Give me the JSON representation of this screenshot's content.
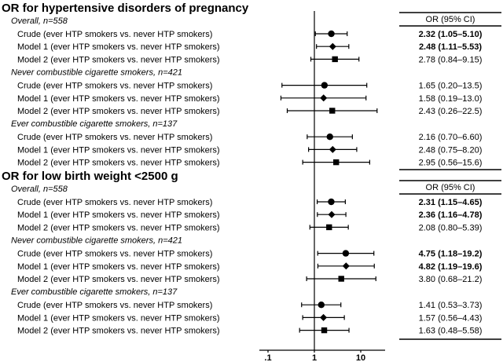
{
  "chart_data": {
    "type": "forest",
    "x_scale": "log",
    "x_ticks": [
      ".1",
      "1",
      "10"
    ],
    "x_tick_values": [
      0.1,
      1,
      10
    ],
    "reference_line": 1,
    "table_header": "OR (95% CI)",
    "marker_legend": {
      "Crude": "circle",
      "Model 1": "diamond",
      "Model 2": "square"
    },
    "panels": [
      {
        "title": "OR for hypertensive disorders of pregnancy",
        "groups": [
          {
            "label": "Overall, n=558",
            "rows": [
              {
                "label": "Crude (ever HTP smokers vs. never HTP smokers)",
                "or": 2.32,
                "lo": 1.05,
                "hi": 5.1,
                "text": "2.32 (1.05–5.10)",
                "bold": true
              },
              {
                "label": "Model 1 (ever HTP smokers vs. never HTP smokers)",
                "or": 2.48,
                "lo": 1.11,
                "hi": 5.53,
                "text": "2.48 (1.11–5.53)",
                "bold": true
              },
              {
                "label": "Model 2 (ever HTP smokers vs. never HTP smokers)",
                "or": 2.78,
                "lo": 0.84,
                "hi": 9.15,
                "text": "2.78 (0.84–9.15)",
                "bold": false
              }
            ]
          },
          {
            "label": "Never combustible cigarette smokers, n=421",
            "rows": [
              {
                "label": "Crude (ever HTP smokers vs. never HTP smokers)",
                "or": 1.65,
                "lo": 0.2,
                "hi": 13.5,
                "text": "1.65 (0.20–13.5)",
                "bold": false
              },
              {
                "label": "Model 1 (ever HTP smokers vs. never HTP smokers)",
                "or": 1.58,
                "lo": 0.19,
                "hi": 13.0,
                "text": "1.58 (0.19–13.0)",
                "bold": false
              },
              {
                "label": "Model 2 (ever HTP smokers vs. never HTP smokers)",
                "or": 2.43,
                "lo": 0.26,
                "hi": 22.5,
                "text": "2.43 (0.26–22.5)",
                "bold": false
              }
            ]
          },
          {
            "label": "Ever combustible cigarette smokers, n=137",
            "rows": [
              {
                "label": "Crude (ever HTP smokers vs. never HTP smokers)",
                "or": 2.16,
                "lo": 0.7,
                "hi": 6.6,
                "text": "2.16 (0.70–6.60)",
                "bold": false
              },
              {
                "label": "Model 1 (ever HTP smokers vs. never HTP smokers)",
                "or": 2.48,
                "lo": 0.75,
                "hi": 8.2,
                "text": "2.48 (0.75–8.20)",
                "bold": false
              },
              {
                "label": "Model 2 (ever HTP smokers vs. never HTP smokers)",
                "or": 2.95,
                "lo": 0.56,
                "hi": 15.6,
                "text": "2.95 (0.56–15.6)",
                "bold": false
              }
            ]
          }
        ]
      },
      {
        "title": "OR for low birth weight <2500 g",
        "groups": [
          {
            "label": "Overall, n=558",
            "rows": [
              {
                "label": "Crude (ever HTP smokers vs. never HTP smokers)",
                "or": 2.31,
                "lo": 1.15,
                "hi": 4.65,
                "text": "2.31 (1.15–4.65)",
                "bold": true
              },
              {
                "label": "Model 1 (ever HTP smokers vs. never HTP smokers)",
                "or": 2.36,
                "lo": 1.16,
                "hi": 4.78,
                "text": "2.36 (1.16–4.78)",
                "bold": true
              },
              {
                "label": "Model 2 (ever HTP smokers vs. never HTP smokers)",
                "or": 2.08,
                "lo": 0.8,
                "hi": 5.39,
                "text": "2.08 (0.80–5.39)",
                "bold": false
              }
            ]
          },
          {
            "label": "Never combustible cigarette smokers, n=421",
            "rows": [
              {
                "label": "Crude (ever HTP smokers vs. never HTP smokers)",
                "or": 4.75,
                "lo": 1.18,
                "hi": 19.2,
                "text": "4.75 (1.18–19.2)",
                "bold": true
              },
              {
                "label": "Model 1 (ever HTP smokers vs. never HTP smokers)",
                "or": 4.82,
                "lo": 1.19,
                "hi": 19.6,
                "text": "4.82 (1.19–19.6)",
                "bold": true
              },
              {
                "label": "Model 2 (ever HTP smokers vs. never HTP smokers)",
                "or": 3.8,
                "lo": 0.68,
                "hi": 21.2,
                "text": "3.80 (0.68–21.2)",
                "bold": false
              }
            ]
          },
          {
            "label": "Ever combustible cigarette smokers, n=137",
            "rows": [
              {
                "label": "Crude (ever HTP smokers vs. never HTP smokers)",
                "or": 1.41,
                "lo": 0.53,
                "hi": 3.73,
                "text": "1.41 (0.53–3.73)",
                "bold": false
              },
              {
                "label": "Model 1 (ever HTP smokers vs. never HTP smokers)",
                "or": 1.57,
                "lo": 0.56,
                "hi": 4.43,
                "text": "1.57 (0.56–4.43)",
                "bold": false
              },
              {
                "label": "Model 2 (ever HTP smokers vs. never HTP smokers)",
                "or": 1.63,
                "lo": 0.48,
                "hi": 5.58,
                "text": "1.63 (0.48–5.58)",
                "bold": false
              }
            ]
          }
        ]
      }
    ]
  }
}
